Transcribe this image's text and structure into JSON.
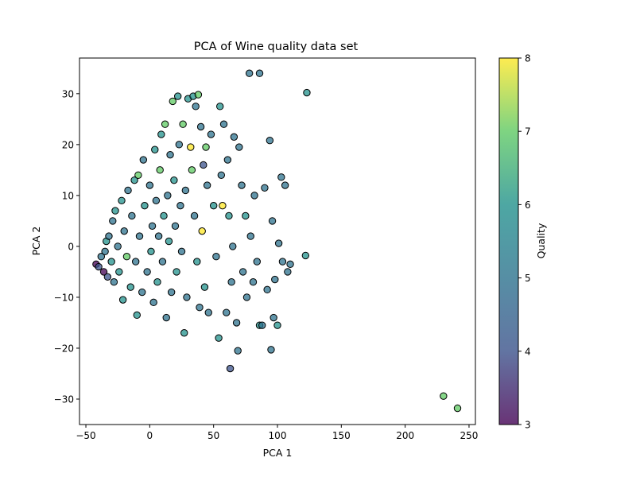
{
  "chart_data": {
    "type": "scatter",
    "title": "PCA of Wine quality data set",
    "xlabel": "PCA 1",
    "ylabel": "PCA 2",
    "xlim": [
      -55,
      255
    ],
    "ylim": [
      -35,
      37
    ],
    "xticks": [
      -50,
      0,
      50,
      100,
      150,
      200,
      250
    ],
    "yticks": [
      -30,
      -20,
      -10,
      0,
      10,
      20,
      30
    ],
    "colorbar": {
      "label": "Quality",
      "min": 3,
      "max": 8,
      "ticks": [
        3,
        4,
        5,
        6,
        7,
        8
      ],
      "colormap": "viridis"
    },
    "points": [
      {
        "x": -42,
        "y": -3.5,
        "q": 3
      },
      {
        "x": -40,
        "y": -4,
        "q": 4
      },
      {
        "x": -38,
        "y": -2,
        "q": 5
      },
      {
        "x": -36,
        "y": -5,
        "q": 3
      },
      {
        "x": -35,
        "y": -1,
        "q": 5
      },
      {
        "x": -34,
        "y": 1,
        "q": 6
      },
      {
        "x": -33,
        "y": -6,
        "q": 4
      },
      {
        "x": -32,
        "y": 2,
        "q": 5
      },
      {
        "x": -30,
        "y": -3,
        "q": 6
      },
      {
        "x": -29,
        "y": 5,
        "q": 5
      },
      {
        "x": -28,
        "y": -7,
        "q": 5
      },
      {
        "x": -27,
        "y": 7,
        "q": 6
      },
      {
        "x": -25,
        "y": 0,
        "q": 5
      },
      {
        "x": -24,
        "y": -5,
        "q": 6
      },
      {
        "x": -22,
        "y": 9,
        "q": 6
      },
      {
        "x": -21,
        "y": -10.5,
        "q": 6
      },
      {
        "x": -20,
        "y": 3,
        "q": 5
      },
      {
        "x": -18,
        "y": -2,
        "q": 7
      },
      {
        "x": -17,
        "y": 11,
        "q": 5
      },
      {
        "x": -15,
        "y": -8,
        "q": 6
      },
      {
        "x": -14,
        "y": 6,
        "q": 5
      },
      {
        "x": -12,
        "y": 13,
        "q": 6
      },
      {
        "x": -11,
        "y": -3,
        "q": 5
      },
      {
        "x": -10,
        "y": -13.5,
        "q": 6
      },
      {
        "x": -9,
        "y": 14,
        "q": 7
      },
      {
        "x": -8,
        "y": 2,
        "q": 5
      },
      {
        "x": -6,
        "y": -9,
        "q": 5
      },
      {
        "x": -5,
        "y": 17,
        "q": 5
      },
      {
        "x": -4,
        "y": 8,
        "q": 6
      },
      {
        "x": -2,
        "y": -5,
        "q": 5
      },
      {
        "x": 0,
        "y": 12,
        "q": 5
      },
      {
        "x": 1,
        "y": -1,
        "q": 6
      },
      {
        "x": 2,
        "y": 4,
        "q": 5
      },
      {
        "x": 3,
        "y": -11,
        "q": 5
      },
      {
        "x": 4,
        "y": 19,
        "q": 6
      },
      {
        "x": 5,
        "y": 9,
        "q": 5
      },
      {
        "x": 6,
        "y": -7,
        "q": 6
      },
      {
        "x": 7,
        "y": 2,
        "q": 5
      },
      {
        "x": 8,
        "y": 15,
        "q": 7
      },
      {
        "x": 9,
        "y": 22,
        "q": 6
      },
      {
        "x": 10,
        "y": -3,
        "q": 5
      },
      {
        "x": 11,
        "y": 6,
        "q": 6
      },
      {
        "x": 12,
        "y": 24,
        "q": 7
      },
      {
        "x": 13,
        "y": -14,
        "q": 5
      },
      {
        "x": 14,
        "y": 10,
        "q": 5
      },
      {
        "x": 15,
        "y": 1,
        "q": 6
      },
      {
        "x": 16,
        "y": 18,
        "q": 5
      },
      {
        "x": 17,
        "y": -9,
        "q": 5
      },
      {
        "x": 18,
        "y": 28.5,
        "q": 7
      },
      {
        "x": 19,
        "y": 13,
        "q": 6
      },
      {
        "x": 20,
        "y": 4,
        "q": 5
      },
      {
        "x": 21,
        "y": -5,
        "q": 6
      },
      {
        "x": 22,
        "y": 29.5,
        "q": 6
      },
      {
        "x": 23,
        "y": 20,
        "q": 5
      },
      {
        "x": 24,
        "y": 8,
        "q": 5
      },
      {
        "x": 25,
        "y": -1,
        "q": 5
      },
      {
        "x": 26,
        "y": 24,
        "q": 7
      },
      {
        "x": 27,
        "y": -17,
        "q": 6
      },
      {
        "x": 28,
        "y": 11,
        "q": 5
      },
      {
        "x": 29,
        "y": -10,
        "q": 5
      },
      {
        "x": 30,
        "y": 29,
        "q": 6
      },
      {
        "x": 32,
        "y": 19.5,
        "q": 8
      },
      {
        "x": 33,
        "y": 15,
        "q": 7
      },
      {
        "x": 34,
        "y": 29.5,
        "q": 6
      },
      {
        "x": 35,
        "y": 6,
        "q": 5
      },
      {
        "x": 36,
        "y": 27.5,
        "q": 5
      },
      {
        "x": 37,
        "y": -3,
        "q": 6
      },
      {
        "x": 38,
        "y": 29.8,
        "q": 7
      },
      {
        "x": 39,
        "y": -12,
        "q": 5
      },
      {
        "x": 40,
        "y": 23.5,
        "q": 5
      },
      {
        "x": 41,
        "y": 3,
        "q": 8
      },
      {
        "x": 42,
        "y": 16,
        "q": 4
      },
      {
        "x": 43,
        "y": -8,
        "q": 6
      },
      {
        "x": 44,
        "y": 19.5,
        "q": 7
      },
      {
        "x": 45,
        "y": 12,
        "q": 5
      },
      {
        "x": 46,
        "y": -13,
        "q": 5
      },
      {
        "x": 48,
        "y": 22,
        "q": 5
      },
      {
        "x": 50,
        "y": 8,
        "q": 6
      },
      {
        "x": 52,
        "y": -2,
        "q": 5
      },
      {
        "x": 54,
        "y": -18,
        "q": 6
      },
      {
        "x": 55,
        "y": 27.5,
        "q": 6
      },
      {
        "x": 56,
        "y": 14,
        "q": 5
      },
      {
        "x": 57,
        "y": 8,
        "q": 8
      },
      {
        "x": 58,
        "y": 24,
        "q": 5
      },
      {
        "x": 60,
        "y": -13,
        "q": 5
      },
      {
        "x": 61,
        "y": 17,
        "q": 5
      },
      {
        "x": 62,
        "y": 6,
        "q": 6
      },
      {
        "x": 63,
        "y": -24,
        "q": 4
      },
      {
        "x": 64,
        "y": -7,
        "q": 5
      },
      {
        "x": 65,
        "y": 0,
        "q": 5
      },
      {
        "x": 66,
        "y": 21.5,
        "q": 5
      },
      {
        "x": 68,
        "y": -15,
        "q": 5
      },
      {
        "x": 69,
        "y": -20.5,
        "q": 5
      },
      {
        "x": 70,
        "y": 19.5,
        "q": 5
      },
      {
        "x": 72,
        "y": 12,
        "q": 5
      },
      {
        "x": 73,
        "y": -5,
        "q": 5
      },
      {
        "x": 75,
        "y": 6,
        "q": 6
      },
      {
        "x": 76,
        "y": -10,
        "q": 5
      },
      {
        "x": 78,
        "y": 34,
        "q": 5
      },
      {
        "x": 79,
        "y": 2,
        "q": 5
      },
      {
        "x": 81,
        "y": -7,
        "q": 5
      },
      {
        "x": 82,
        "y": 10,
        "q": 5
      },
      {
        "x": 84,
        "y": -3,
        "q": 5
      },
      {
        "x": 86,
        "y": 34,
        "q": 5
      },
      {
        "x": 86,
        "y": -15.5,
        "q": 6
      },
      {
        "x": 88,
        "y": -15.5,
        "q": 5
      },
      {
        "x": 90,
        "y": 11.5,
        "q": 5
      },
      {
        "x": 92,
        "y": -8.5,
        "q": 5
      },
      {
        "x": 94,
        "y": 20.8,
        "q": 5
      },
      {
        "x": 95,
        "y": -20.3,
        "q": 5
      },
      {
        "x": 96,
        "y": 5,
        "q": 5
      },
      {
        "x": 97,
        "y": -14,
        "q": 5
      },
      {
        "x": 98,
        "y": -6.5,
        "q": 5
      },
      {
        "x": 100,
        "y": -15.5,
        "q": 6
      },
      {
        "x": 101,
        "y": 0.6,
        "q": 5
      },
      {
        "x": 103,
        "y": 13.6,
        "q": 5
      },
      {
        "x": 104,
        "y": -3,
        "q": 5
      },
      {
        "x": 106,
        "y": 12,
        "q": 5
      },
      {
        "x": 108,
        "y": -5,
        "q": 5
      },
      {
        "x": 110,
        "y": -3.5,
        "q": 5
      },
      {
        "x": 122,
        "y": -1.8,
        "q": 6
      },
      {
        "x": 123,
        "y": 30.2,
        "q": 6
      },
      {
        "x": 230,
        "y": -29.4,
        "q": 7
      },
      {
        "x": 241,
        "y": -31.8,
        "q": 7
      }
    ]
  }
}
